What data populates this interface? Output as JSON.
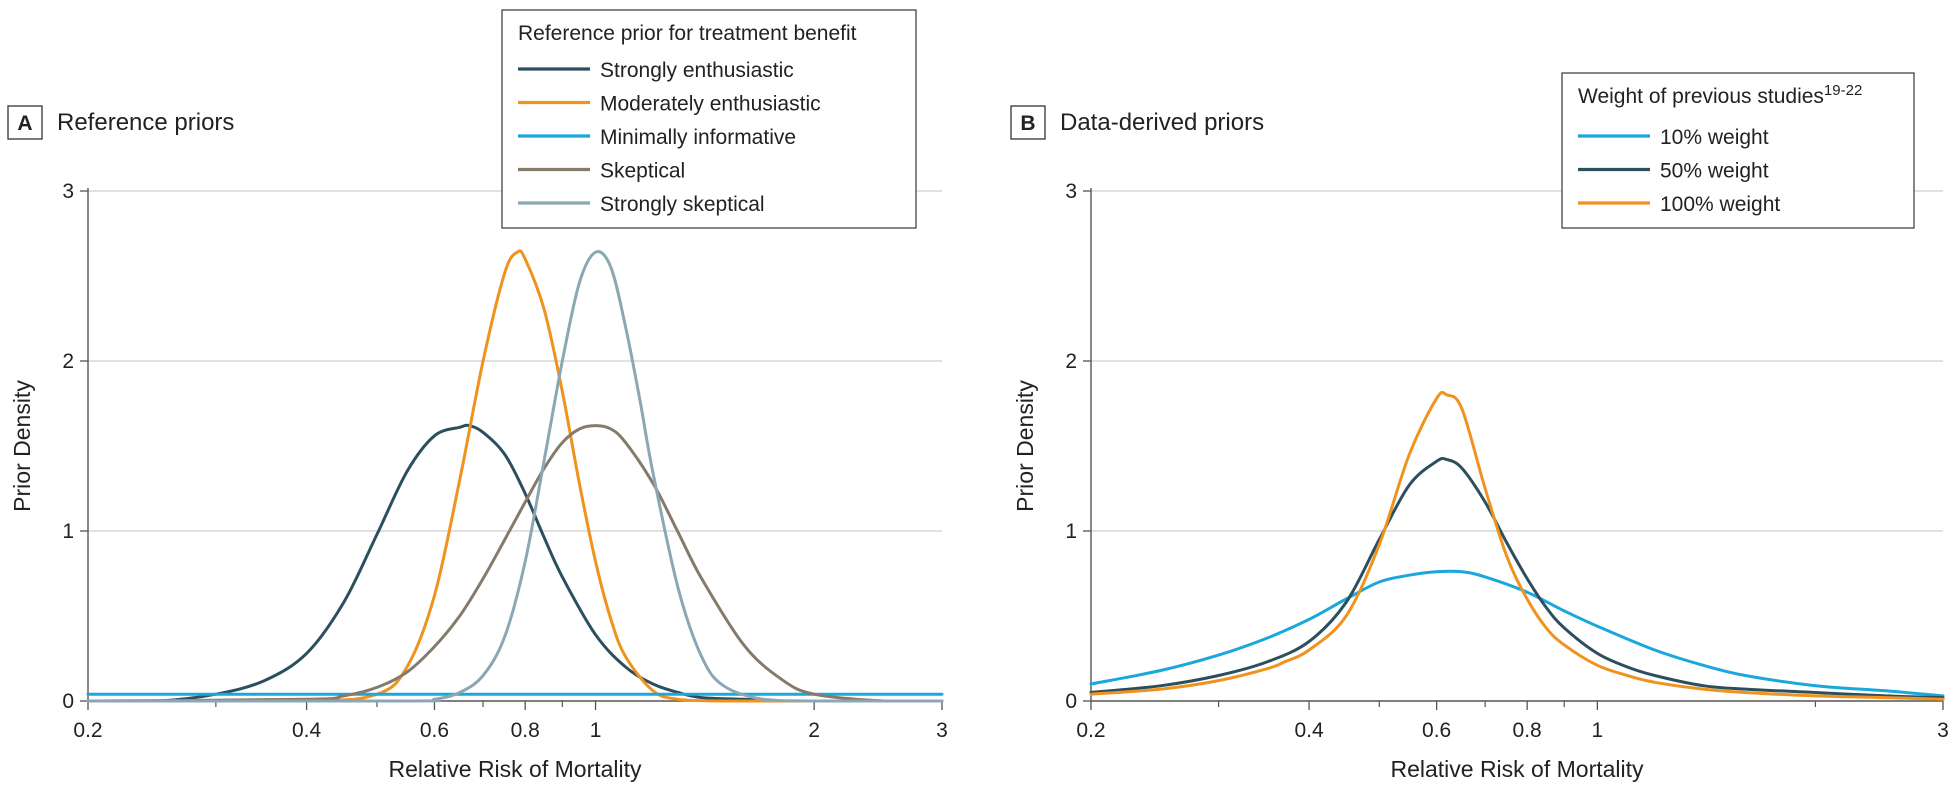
{
  "chart_data": [
    {
      "panel_label": "A",
      "title": "Reference priors",
      "type": "line",
      "xlabel": "Relative Risk of Mortality",
      "ylabel": "Prior Density",
      "x_scale": "log",
      "xlim": [
        0.2,
        3
      ],
      "ylim": [
        0,
        3
      ],
      "x_ticks": [
        0.2,
        0.4,
        0.6,
        0.8,
        1,
        2,
        3
      ],
      "x_tick_labels": [
        "0.2",
        "0.4",
        "0.6",
        "0.8",
        "1",
        "2",
        "3"
      ],
      "x_minor_ticks": [
        0.3,
        0.5,
        0.7,
        0.9
      ],
      "y_ticks": [
        0,
        1,
        2,
        3
      ],
      "grid": "horizontal",
      "legend_title": "Reference prior for treatment benefit",
      "legend_position": "top-right",
      "series": [
        {
          "name": "Strongly enthusiastic",
          "color": "#2c4f5e",
          "x": [
            0.2,
            0.25,
            0.3,
            0.35,
            0.4,
            0.45,
            0.5,
            0.55,
            0.6,
            0.65,
            0.67,
            0.7,
            0.75,
            0.8,
            0.85,
            0.9,
            1.0,
            1.1,
            1.2,
            1.3,
            1.4,
            1.6,
            1.8,
            2.0,
            2.5,
            3.0
          ],
          "y": [
            0.0,
            0.0,
            0.04,
            0.12,
            0.28,
            0.58,
            0.98,
            1.35,
            1.56,
            1.61,
            1.62,
            1.58,
            1.45,
            1.22,
            0.96,
            0.73,
            0.39,
            0.2,
            0.1,
            0.05,
            0.02,
            0.01,
            0.0,
            0.0,
            0.0,
            0.0
          ]
        },
        {
          "name": "Moderately enthusiastic",
          "color": "#f0921e",
          "x": [
            0.2,
            0.4,
            0.5,
            0.55,
            0.6,
            0.65,
            0.7,
            0.75,
            0.78,
            0.8,
            0.85,
            0.9,
            0.95,
            1.0,
            1.05,
            1.1,
            1.2,
            1.3,
            1.5,
            2.0,
            3.0
          ],
          "y": [
            0.0,
            0.0,
            0.04,
            0.2,
            0.62,
            1.3,
            2.0,
            2.52,
            2.64,
            2.6,
            2.3,
            1.82,
            1.28,
            0.82,
            0.48,
            0.26,
            0.06,
            0.01,
            0.0,
            0.0,
            0.0
          ]
        },
        {
          "name": "Minimally informative",
          "color": "#1aa7dc",
          "x": [
            0.2,
            3.0
          ],
          "y": [
            0.04,
            0.04
          ]
        },
        {
          "name": "Skeptical",
          "color": "#857a6c",
          "x": [
            0.2,
            0.4,
            0.45,
            0.5,
            0.55,
            0.6,
            0.65,
            0.7,
            0.75,
            0.8,
            0.85,
            0.9,
            0.95,
            1.0,
            1.05,
            1.1,
            1.2,
            1.3,
            1.4,
            1.6,
            1.8,
            2.0,
            2.5,
            3.0
          ],
          "y": [
            0.0,
            0.01,
            0.03,
            0.08,
            0.17,
            0.32,
            0.5,
            0.72,
            0.95,
            1.17,
            1.37,
            1.52,
            1.6,
            1.62,
            1.6,
            1.52,
            1.28,
            0.99,
            0.72,
            0.33,
            0.13,
            0.04,
            0.0,
            0.0
          ]
        },
        {
          "name": "Strongly skeptical",
          "color": "#8ca7b4",
          "x": [
            0.2,
            0.55,
            0.6,
            0.65,
            0.7,
            0.75,
            0.8,
            0.85,
            0.9,
            0.95,
            1.0,
            1.05,
            1.1,
            1.15,
            1.2,
            1.3,
            1.4,
            1.5,
            1.7,
            2.0,
            3.0
          ],
          "y": [
            0.0,
            0.0,
            0.01,
            0.05,
            0.15,
            0.38,
            0.82,
            1.42,
            2.0,
            2.46,
            2.64,
            2.55,
            2.2,
            1.78,
            1.34,
            0.66,
            0.26,
            0.09,
            0.01,
            0.0,
            0.0
          ]
        }
      ]
    },
    {
      "panel_label": "B",
      "title": "Data-derived priors",
      "type": "line",
      "xlabel": "Relative Risk of Mortality",
      "ylabel": "Prior Density",
      "x_scale": "log",
      "xlim": [
        0.2,
        3
      ],
      "ylim": [
        0,
        3
      ],
      "x_ticks": [
        0.2,
        0.4,
        0.6,
        0.8,
        1,
        3
      ],
      "x_tick_labels": [
        "0.2",
        "0.4",
        "0.6",
        "0.8",
        "1",
        "3"
      ],
      "x_minor_ticks": [
        0.3,
        0.5,
        0.7,
        0.9,
        2
      ],
      "y_ticks": [
        0,
        1,
        2,
        3
      ],
      "grid": "horizontal",
      "legend_title": "Weight of previous studies",
      "legend_title_superscript": "19-22",
      "legend_position": "top-right",
      "series": [
        {
          "name": "10% weight",
          "color": "#1aa7dc",
          "x": [
            0.2,
            0.25,
            0.3,
            0.35,
            0.4,
            0.45,
            0.5,
            0.55,
            0.6,
            0.65,
            0.7,
            0.8,
            0.9,
            1.0,
            1.2,
            1.4,
            1.6,
            2.0,
            2.5,
            3.0
          ],
          "y": [
            0.1,
            0.18,
            0.27,
            0.37,
            0.48,
            0.6,
            0.7,
            0.74,
            0.76,
            0.76,
            0.73,
            0.64,
            0.53,
            0.44,
            0.3,
            0.21,
            0.15,
            0.09,
            0.06,
            0.03
          ]
        },
        {
          "name": "50% weight",
          "color": "#2c4f5e",
          "x": [
            0.2,
            0.25,
            0.3,
            0.35,
            0.4,
            0.45,
            0.5,
            0.55,
            0.6,
            0.62,
            0.65,
            0.7,
            0.75,
            0.8,
            0.85,
            0.9,
            1.0,
            1.1,
            1.2,
            1.4,
            1.6,
            2.0,
            2.5,
            3.0
          ],
          "y": [
            0.05,
            0.09,
            0.15,
            0.23,
            0.35,
            0.58,
            0.95,
            1.27,
            1.41,
            1.42,
            1.37,
            1.17,
            0.93,
            0.72,
            0.55,
            0.43,
            0.28,
            0.2,
            0.15,
            0.09,
            0.07,
            0.05,
            0.03,
            0.02
          ]
        },
        {
          "name": "100% weight",
          "color": "#f0921e",
          "x": [
            0.2,
            0.25,
            0.3,
            0.35,
            0.37,
            0.4,
            0.45,
            0.5,
            0.55,
            0.6,
            0.62,
            0.65,
            0.7,
            0.75,
            0.8,
            0.85,
            0.9,
            1.0,
            1.1,
            1.2,
            1.4,
            1.6,
            2.0,
            2.5,
            3.0
          ],
          "y": [
            0.04,
            0.07,
            0.12,
            0.19,
            0.23,
            0.3,
            0.5,
            0.92,
            1.45,
            1.78,
            1.8,
            1.72,
            1.25,
            0.85,
            0.6,
            0.43,
            0.33,
            0.21,
            0.15,
            0.11,
            0.07,
            0.05,
            0.03,
            0.02,
            0.01
          ]
        }
      ]
    }
  ]
}
